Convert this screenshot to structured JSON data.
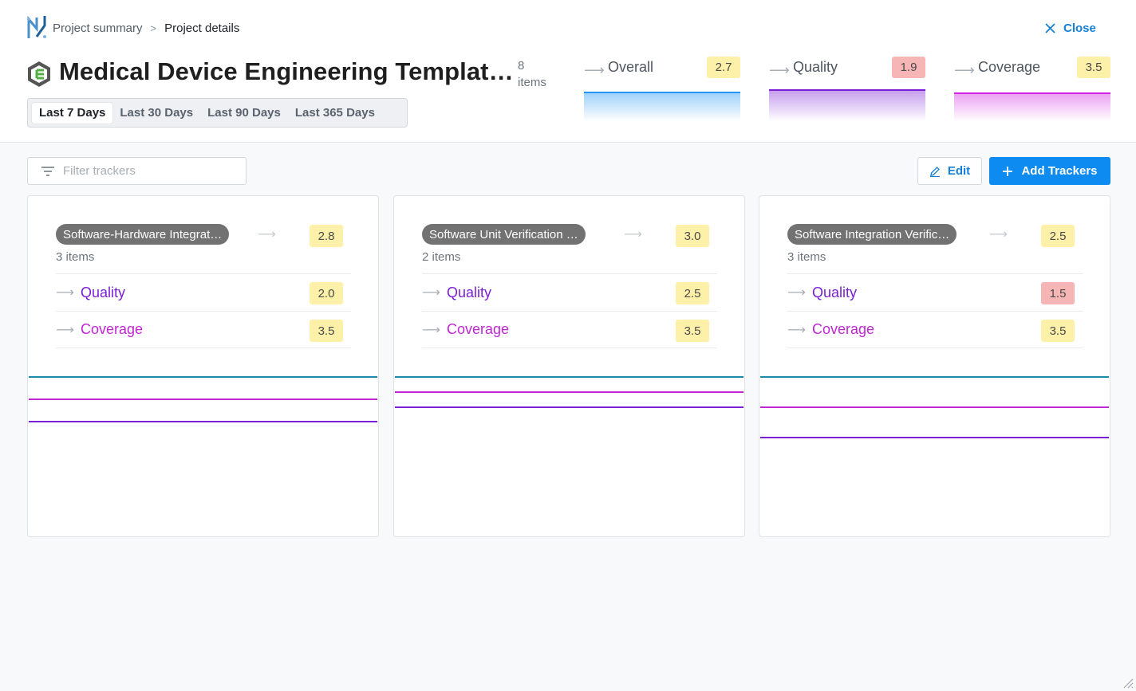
{
  "breadcrumb": {
    "parent": "Project summary",
    "separator": ">",
    "current": "Project details"
  },
  "close_label": "Close",
  "title": "Medical Device Engineering Templat…",
  "items_count": "8 items",
  "ranges": [
    "Last 7 Days",
    "Last 30 Days",
    "Last 90 Days",
    "Last 365 Days"
  ],
  "active_range": "Last 7 Days",
  "metrics": [
    {
      "label": "Overall",
      "value": "2.7",
      "status": "warn",
      "color": "#2196f3"
    },
    {
      "label": "Quality",
      "value": "1.9",
      "status": "bad",
      "color": "#7b1fd6"
    },
    {
      "label": "Coverage",
      "value": "3.5",
      "status": "warn",
      "color": "#d024e0"
    }
  ],
  "filter": {
    "placeholder": "Filter trackers",
    "value": ""
  },
  "edit_label": "Edit",
  "add_label": "Add Trackers",
  "colors": {
    "accent": "#0d8bf0",
    "badge_warn": "#fdf0a8",
    "badge_bad": "#f6b6b6",
    "quality": "#7b1fd6",
    "coverage": "#c026d3",
    "overall_line": "#1a8aa8"
  },
  "cards": [
    {
      "name": "Software-Hardware Integrat…",
      "items": "3 items",
      "score": "2.8",
      "rows": [
        {
          "label": "Quality",
          "value": "2.0",
          "status": "warn"
        },
        {
          "label": "Coverage",
          "value": "3.5",
          "status": "warn"
        }
      ]
    },
    {
      "name": "Software Unit Verification …",
      "items": "2 items",
      "score": "3.0",
      "rows": [
        {
          "label": "Quality",
          "value": "2.5",
          "status": "warn"
        },
        {
          "label": "Coverage",
          "value": "3.5",
          "status": "warn"
        }
      ]
    },
    {
      "name": "Software Integration Verific…",
      "items": "3 items",
      "score": "2.5",
      "rows": [
        {
          "label": "Quality",
          "value": "1.5",
          "status": "bad"
        },
        {
          "label": "Coverage",
          "value": "3.5",
          "status": "warn"
        }
      ]
    }
  ]
}
